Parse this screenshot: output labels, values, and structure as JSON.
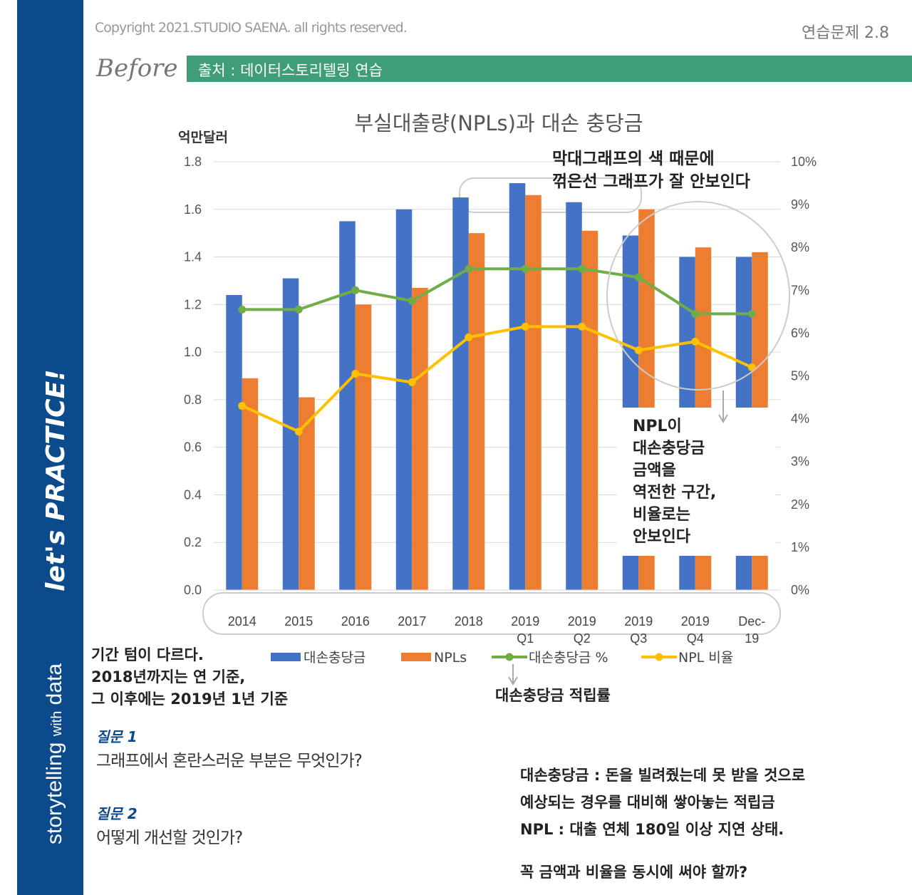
{
  "header": {
    "copyright": "Copyright 2021.STUDIO SAENA. all rights reserved.",
    "exercise": "연습문제 2.8",
    "before": "Before",
    "source": "출처 : 데이터스토리텔링 연습"
  },
  "sidebar": {
    "storytelling": "storytelling",
    "with": "with",
    "data": "data",
    "practice": "let's PRACTICE!"
  },
  "chart_data": {
    "type": "bar",
    "title": "부실대출량(NPLs)과 대손 충당금",
    "y_label": "억만달러",
    "categories": [
      "2014",
      "2015",
      "2016",
      "2017",
      "2018",
      "2019 Q1",
      "2019 Q2",
      "2019 Q3",
      "2019 Q4",
      "Dec-19"
    ],
    "series": [
      {
        "name": "대손충당금",
        "type": "bar",
        "color": "#4472c4",
        "values": [
          1.24,
          1.31,
          1.55,
          1.6,
          1.65,
          1.71,
          1.63,
          1.49,
          1.4,
          1.4
        ]
      },
      {
        "name": "NPLs",
        "type": "bar",
        "color": "#ed7d31",
        "values": [
          0.89,
          0.81,
          1.2,
          1.27,
          1.5,
          1.66,
          1.51,
          1.6,
          1.44,
          1.42
        ]
      },
      {
        "name": "대손충당금 %",
        "type": "line",
        "axis": "y2",
        "color": "#70ad47",
        "values": [
          6.55,
          6.55,
          7.0,
          6.75,
          7.5,
          7.5,
          7.5,
          7.3,
          6.45,
          6.45
        ]
      },
      {
        "name": "NPL 비율",
        "type": "line",
        "axis": "y2",
        "color": "#ffc000",
        "values": [
          4.3,
          3.7,
          5.05,
          4.85,
          5.9,
          6.15,
          6.15,
          5.6,
          5.8,
          5.2
        ]
      }
    ],
    "ylim": [
      0,
      1.8
    ],
    "yticks": [
      {
        "value": 0,
        "label": "0.0"
      },
      0.2,
      0.4,
      0.6,
      0.8,
      {
        "value": 1,
        "label": "1.0"
      },
      1.2,
      1.4,
      1.6,
      1.8
    ],
    "y2lim": [
      0,
      10
    ],
    "y2ticks": [
      {
        "value": 0,
        "label": "0%"
      },
      {
        "value": 1,
        "label": "1%"
      },
      {
        "value": 2,
        "label": "2%"
      },
      {
        "value": 3,
        "label": "3%"
      },
      {
        "value": 4,
        "label": "4%"
      },
      {
        "value": 5,
        "label": "5%"
      },
      {
        "value": 6,
        "label": "6%"
      },
      {
        "value": 7,
        "label": "7%"
      },
      {
        "value": 8,
        "label": "8%"
      },
      {
        "value": 9,
        "label": "9%"
      },
      {
        "value": 10,
        "label": "10%"
      }
    ],
    "grid": true,
    "legend": "bottom"
  },
  "notes": {
    "color_note": [
      "막대그래프의 색 때문에",
      "꺾은선 그래프가 잘 안보인다"
    ],
    "reverse_note": [
      "NPL이",
      "대손충당금",
      "금액을",
      "역전한 구간,",
      "비율로는",
      "안보인다"
    ],
    "period_note": [
      "기간 텀이 다르다.",
      "2018년까지는 연 기준,",
      "그 이후에는 2019년 1년 기준"
    ],
    "legend_note": "대손충당금 적립률"
  },
  "questions": [
    {
      "label": "질문 1",
      "text": "그래프에서 혼란스러운 부분은 무엇인가?"
    },
    {
      "label": "질문 2",
      "text": "어떻게 개선할 것인가?"
    }
  ],
  "definitions": [
    "대손충당금 : 돈을 빌려줬는데 못 받을 것으로",
    "예상되는 경우를 대비해 쌓아놓는 적립금",
    "NPL : 대출 연체 180일 이상 지연 상태.",
    "꼭 금액과 비율을 동시에 써야 할까?"
  ]
}
